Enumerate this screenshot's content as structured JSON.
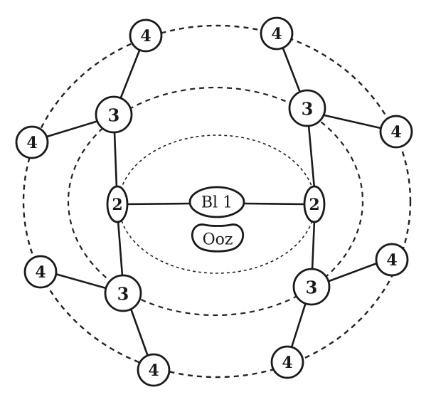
{
  "diagram": {
    "center_top_label": "Bl 1",
    "center_bottom_label": "Ooz",
    "level2_left": "2",
    "level2_right": "2",
    "level3_upper_left": "3",
    "level3_upper_right": "3",
    "level3_lower_left": "3",
    "level3_lower_right": "3",
    "level4_top_left": "4",
    "level4_top_right": "4",
    "level4_left_upper": "4",
    "level4_right_upper": "4",
    "level4_left_lower": "4",
    "level4_right_lower": "4",
    "level4_bottom_left": "4",
    "level4_bottom_right": "4"
  }
}
